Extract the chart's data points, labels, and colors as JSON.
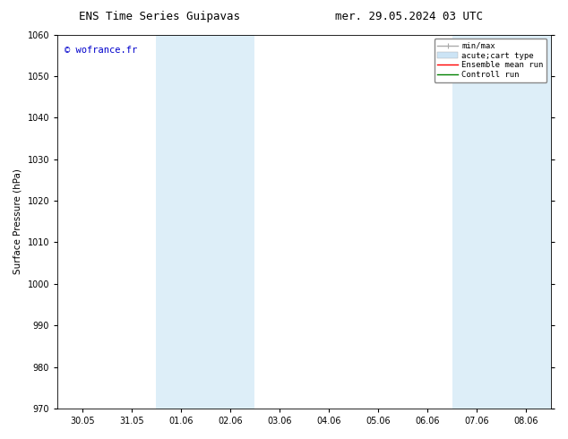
{
  "title_left": "ENS Time Series Guipavas",
  "title_right": "mer. 29.05.2024 03 UTC",
  "ylabel": "Surface Pressure (hPa)",
  "ylim": [
    970,
    1060
  ],
  "yticks": [
    970,
    980,
    990,
    1000,
    1010,
    1020,
    1030,
    1040,
    1050,
    1060
  ],
  "xtick_labels": [
    "30.05",
    "31.05",
    "01.06",
    "02.06",
    "03.06",
    "04.06",
    "05.06",
    "06.06",
    "07.06",
    "08.06"
  ],
  "watermark": "© wofrance.fr",
  "watermark_color": "#0000cc",
  "bg_color": "#ffffff",
  "plot_bg_color": "#ffffff",
  "shaded_color": "#ddeef8",
  "legend_entries": [
    {
      "label": "min/max",
      "color": "#aaaaaa",
      "lw": 1.0
    },
    {
      "label": "acute;cart type",
      "color": "#cce4f5",
      "lw": 6
    },
    {
      "label": "Ensemble mean run",
      "color": "#ff0000",
      "lw": 1.0
    },
    {
      "label": "Controll run",
      "color": "#008000",
      "lw": 1.0
    }
  ],
  "title_fontsize": 9,
  "axis_fontsize": 7.5,
  "tick_fontsize": 7,
  "watermark_fontsize": 7.5,
  "legend_fontsize": 6.5
}
